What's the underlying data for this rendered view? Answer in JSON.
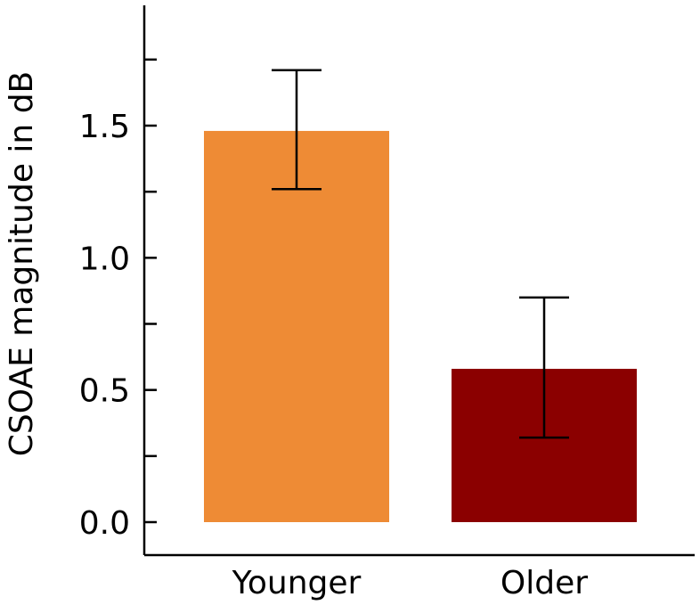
{
  "chart_data": {
    "type": "bar",
    "categories": [
      "Younger",
      "Older"
    ],
    "values": [
      1.48,
      0.58
    ],
    "error_bars": [
      {
        "lower": 1.26,
        "upper": 1.71
      },
      {
        "lower": 0.32,
        "upper": 0.85
      }
    ],
    "bar_colors": [
      "#ee8b35",
      "#8b0000"
    ],
    "title": "",
    "xlabel": "",
    "ylabel": "CSOAE magnitude in dB",
    "ylim": [
      -0.12,
      1.95
    ],
    "yticks": [
      "0.0",
      "0.5",
      "1.0",
      "1.5"
    ],
    "ytick_values": [
      0.0,
      0.5,
      1.0,
      1.5
    ],
    "minor_ytick_values": [
      0.25,
      0.75,
      1.25,
      1.75
    ],
    "grid": false,
    "legend": "none"
  }
}
